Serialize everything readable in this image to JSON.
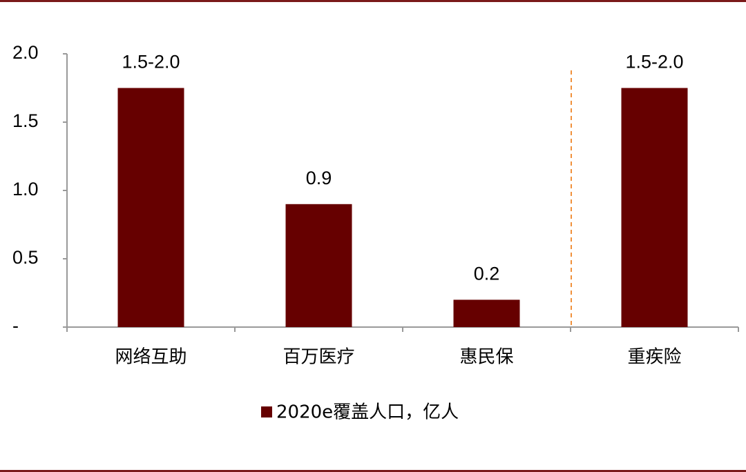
{
  "chart_data": {
    "type": "bar",
    "categories": [
      "网络互助",
      "百万医疗",
      "惠民保",
      "重疾险"
    ],
    "series": [
      {
        "name": "2020e覆盖人口，亿人",
        "color": "#660000",
        "values": [
          1.75,
          0.9,
          0.2,
          1.75
        ],
        "value_labels": [
          "1.5-2.0",
          "0.9",
          "0.2",
          "1.5-2.0"
        ]
      }
    ],
    "ylim": [
      0,
      2
    ],
    "yticks": [
      {
        "value": 0,
        "label": "-"
      },
      0.5,
      {
        "value": 1,
        "label": "1.0"
      },
      1.5,
      {
        "value": 2,
        "label": "2.0"
      }
    ],
    "legend": "bottom"
  }
}
